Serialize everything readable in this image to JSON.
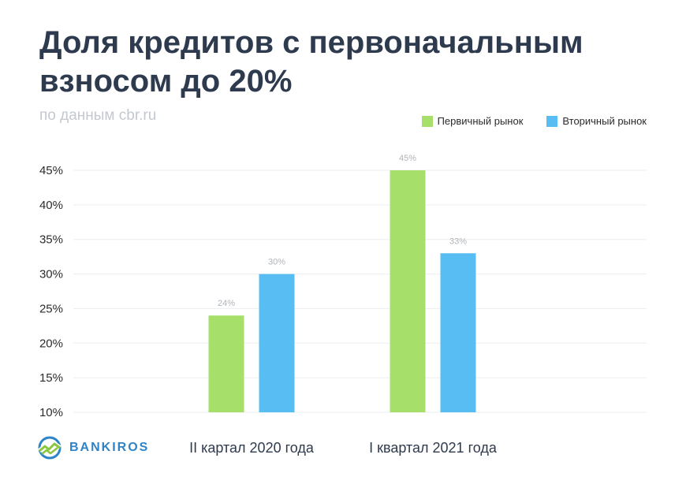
{
  "title": "Доля кредитов с первоначальным взносом до 20%",
  "subtitle": "по данным cbr.ru",
  "brand": "BANKIROS",
  "colors": {
    "primary": "#a6df6a",
    "secondary": "#57bdf2",
    "grid": "#ebedf0",
    "value_label": "#b0b4ba",
    "title": "#2e3a4e"
  },
  "chart_data": {
    "type": "bar",
    "categories": [
      "II картал 2020 года",
      "I квартал 2021 года"
    ],
    "series": [
      {
        "name": "Первичный рынок",
        "values": [
          24,
          45
        ],
        "labels": [
          "24%",
          "45%"
        ],
        "color": "#a6df6a"
      },
      {
        "name": "Вторичный рынок",
        "values": [
          30,
          33
        ],
        "labels": [
          "30%",
          "33%"
        ],
        "color": "#57bdf2"
      }
    ],
    "yticks": [
      "10%",
      "15%",
      "20%",
      "25%",
      "30%",
      "35%",
      "40%",
      "45%"
    ],
    "ylim": [
      10,
      45
    ],
    "grid": true,
    "legend_position": "top-right"
  }
}
